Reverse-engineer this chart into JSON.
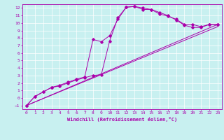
{
  "xlabel": "Windchill (Refroidissement éolien,°C)",
  "bg_color": "#c8f0f0",
  "line_color": "#aa00aa",
  "xlim": [
    -0.5,
    23.5
  ],
  "ylim": [
    -1.5,
    12.5
  ],
  "xticks": [
    0,
    1,
    2,
    3,
    4,
    5,
    6,
    7,
    8,
    9,
    10,
    11,
    12,
    13,
    14,
    15,
    16,
    17,
    18,
    19,
    20,
    21,
    22,
    23
  ],
  "yticks": [
    -1,
    0,
    1,
    2,
    3,
    4,
    5,
    6,
    7,
    8,
    9,
    10,
    11,
    12
  ],
  "line1_x": [
    0,
    1,
    2,
    3,
    4,
    5,
    6,
    7,
    8,
    9,
    10,
    11,
    12,
    13,
    14,
    15,
    16,
    17,
    18,
    19,
    20,
    21,
    22,
    23
  ],
  "line1_y": [
    -1,
    0.2,
    0.8,
    1.4,
    1.7,
    2.1,
    2.5,
    2.8,
    7.8,
    7.5,
    8.3,
    10.5,
    12.1,
    12.2,
    12.0,
    11.8,
    11.2,
    10.9,
    10.5,
    9.8,
    9.8,
    9.5,
    9.8,
    9.8
  ],
  "line2_x": [
    0,
    1,
    2,
    3,
    4,
    5,
    6,
    7,
    8,
    9,
    10,
    11,
    12,
    13,
    14,
    15,
    16,
    17,
    18,
    19,
    20,
    21,
    22,
    23
  ],
  "line2_y": [
    -1,
    0.2,
    0.8,
    1.4,
    1.6,
    2.0,
    2.4,
    2.7,
    3.0,
    3.1,
    7.6,
    10.7,
    12.1,
    12.2,
    11.8,
    11.8,
    11.4,
    11.0,
    10.4,
    9.7,
    9.4,
    9.4,
    9.8,
    9.8
  ],
  "line3_x": [
    0,
    23
  ],
  "line3_y": [
    -1,
    9.8
  ],
  "line4_x": [
    0,
    23
  ],
  "line4_y": [
    -1,
    9.5
  ],
  "tick_fontsize": 4.5,
  "xlabel_fontsize": 5.0,
  "grid_color": "#ffffff",
  "spine_color": "#aa00aa"
}
